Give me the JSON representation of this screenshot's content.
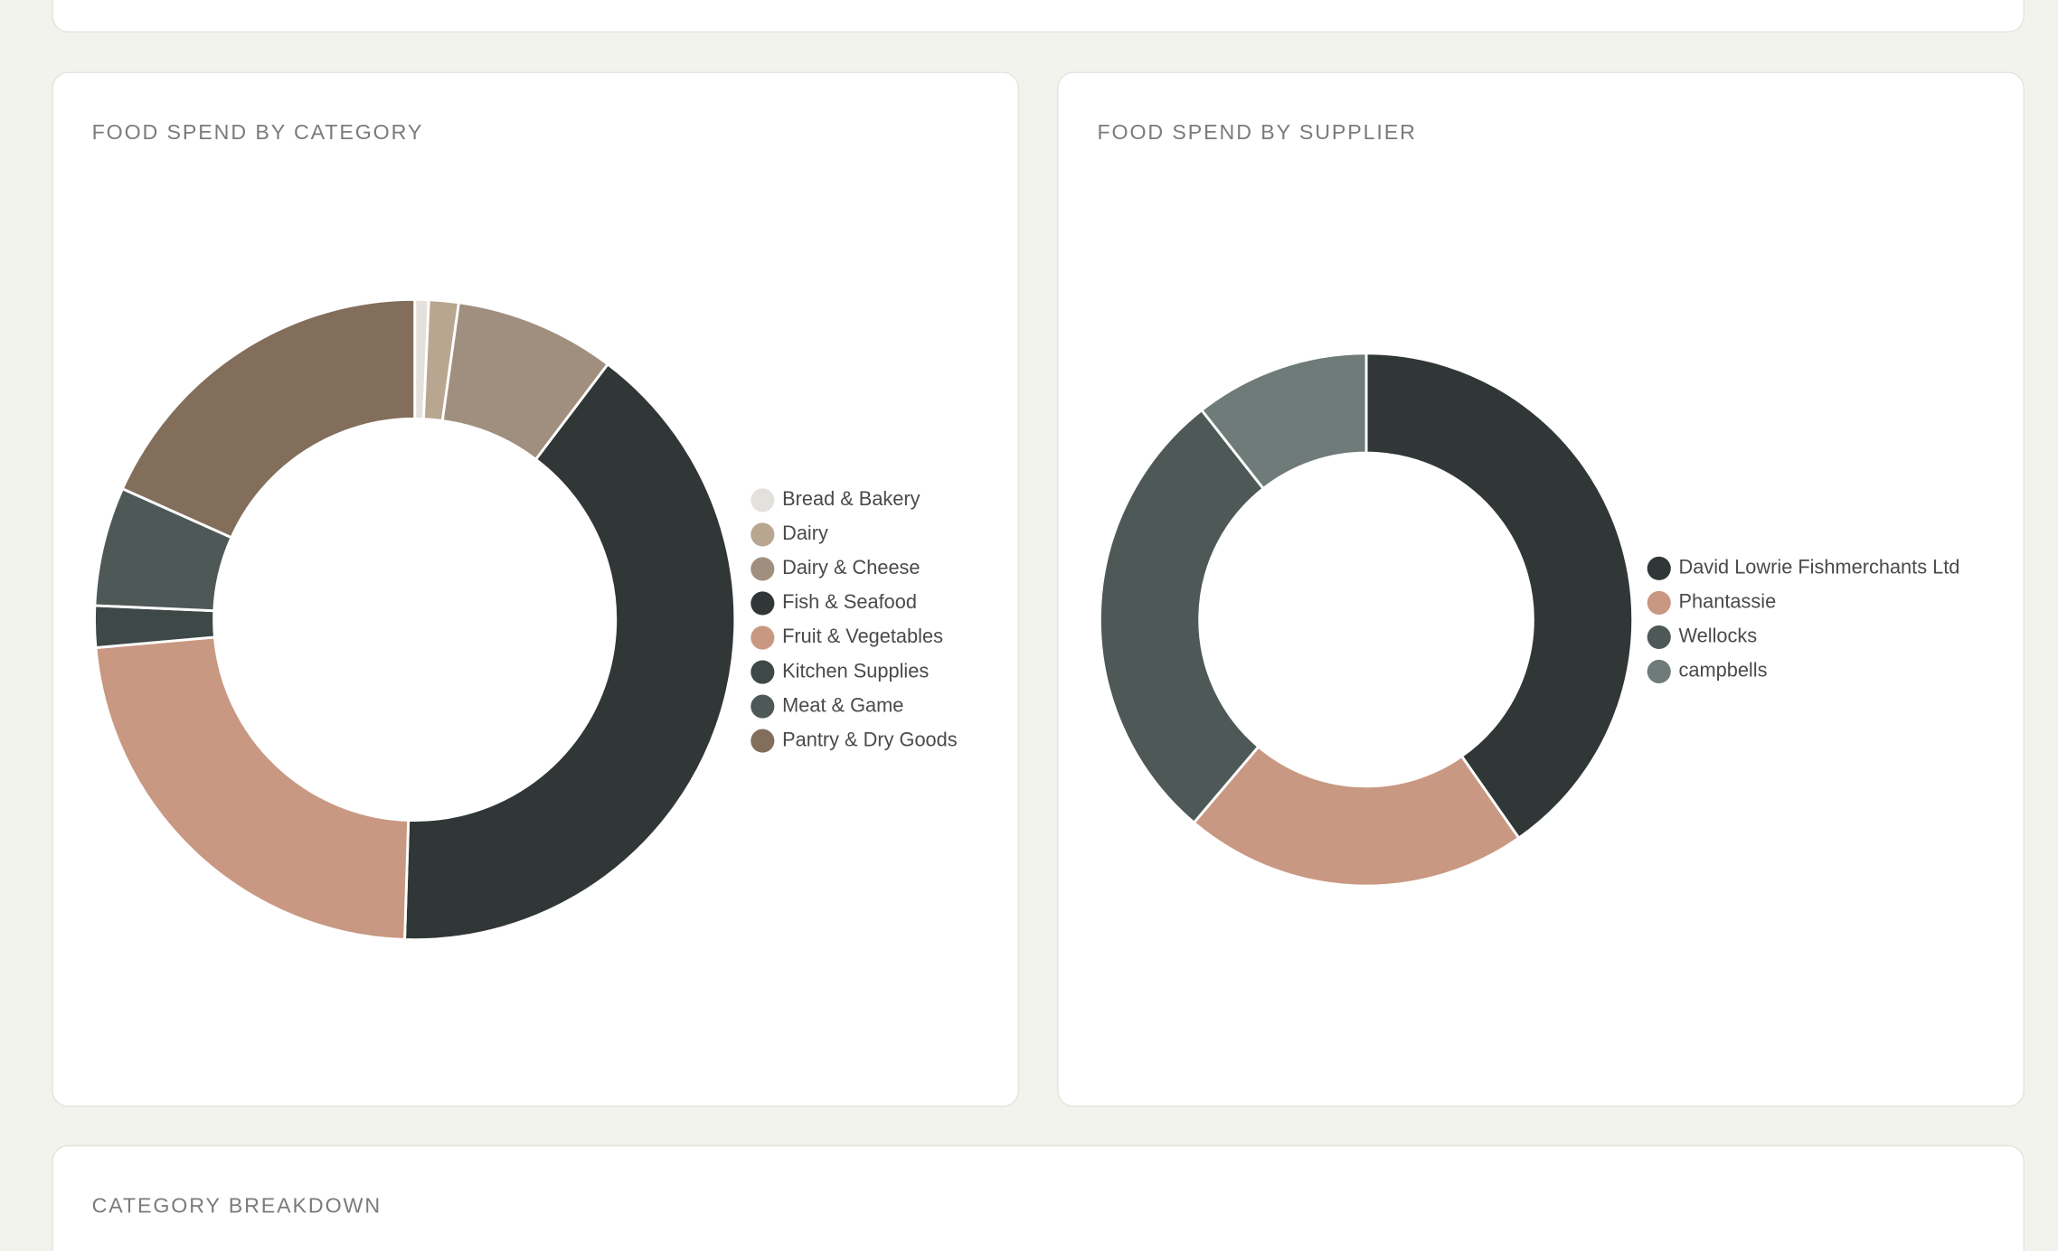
{
  "chart_data": [
    {
      "type": "donut",
      "title": "FOOD SPEND BY CATEGORY",
      "categories": [
        "Bread & Bakery",
        "Dairy",
        "Dairy & Cheese",
        "Fish & Seafood",
        "Fruit & Vegetables",
        "Kitchen Supplies",
        "Meat & Game",
        "Pantry & Dry Goods"
      ],
      "values": [
        0.7,
        1.5,
        8.1,
        40.2,
        23.1,
        2.1,
        6.0,
        18.3
      ],
      "colors": [
        "#e4e1dc",
        "#b8a690",
        "#a08f7f",
        "#313636",
        "#c99882",
        "#3d4847",
        "#4e5957",
        "#836e5c"
      ],
      "legend": "right"
    },
    {
      "type": "donut",
      "title": "FOOD SPEND BY SUPPLIER",
      "categories": [
        "David Lowrie Fishmerchants Ltd",
        "Phantassie",
        "Wellocks",
        "campbells"
      ],
      "values": [
        40.3,
        20.9,
        28.2,
        10.6
      ],
      "colors": [
        "#313636",
        "#c99882",
        "#4e5957",
        "#6e7b78"
      ],
      "legend": "right"
    }
  ],
  "sections": {
    "breakdown_title": "CATEGORY BREAKDOWN"
  }
}
